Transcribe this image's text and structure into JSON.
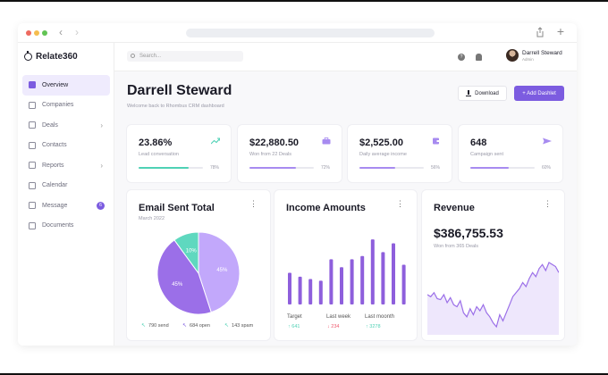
{
  "app": {
    "name": "Relate360"
  },
  "browser": {
    "back_glyph": "‹",
    "forward_glyph": "›",
    "new_tab_glyph": "+"
  },
  "sidebar": {
    "items": [
      {
        "label": "Overview",
        "icon": "grid-icon",
        "active": true
      },
      {
        "label": "Companies",
        "icon": "building-icon"
      },
      {
        "label": "Deals",
        "icon": "briefcase-icon",
        "chevron": true
      },
      {
        "label": "Contacts",
        "icon": "contacts-icon"
      },
      {
        "label": "Reports",
        "icon": "report-icon",
        "chevron": true
      },
      {
        "label": "Calendar",
        "icon": "calendar-icon"
      },
      {
        "label": "Message",
        "icon": "mail-icon",
        "badge": "6"
      },
      {
        "label": "Documents",
        "icon": "document-icon"
      }
    ],
    "chevron_glyph": "›"
  },
  "topbar": {
    "search_placeholder": "Search...",
    "help_glyph": "?",
    "user": {
      "name": "Darrell Steward",
      "role": "Admin"
    }
  },
  "header": {
    "title": "Darrell Steward",
    "subtitle": "Welcome back to Rhombus CRM dashboard",
    "download_label": "Download",
    "add_label": "+ Add Dashlet"
  },
  "stats": [
    {
      "value": "23.86%",
      "label": "Lead conversation",
      "percent": "78%",
      "progress": 0.78,
      "color": "#4fd1b5",
      "icon": "trend-icon"
    },
    {
      "value": "$22,880.50",
      "label": "Won from 22 Deals",
      "percent": "72%",
      "progress": 0.72,
      "color": "#a78bf0",
      "icon": "briefcase-icon"
    },
    {
      "value": "$2,525.00",
      "label": "Daily average income",
      "percent": "56%",
      "progress": 0.56,
      "color": "#a78bf0",
      "icon": "wallet-icon"
    },
    {
      "value": "648",
      "label": "Campaign sent",
      "percent": "60%",
      "progress": 0.6,
      "color": "#a78bf0",
      "icon": "send-icon"
    }
  ],
  "email_card": {
    "title": "Email Sent Total",
    "subtitle": "March 2022",
    "legend": [
      {
        "arrow": "↖",
        "text": "790 send",
        "color": "#4fd1b5"
      },
      {
        "arrow": "↖",
        "text": "684 open",
        "color": "#7c5ce0"
      },
      {
        "arrow": "↖",
        "text": "143 spam",
        "color": "#4fd1b5"
      }
    ]
  },
  "income_card": {
    "title": "Income Amounts",
    "footer": [
      {
        "label": "Target",
        "value": "↑ 641",
        "color": "#4fd1b5"
      },
      {
        "label": "Last week",
        "value": "↓ 234",
        "color": "#ef5a6f"
      },
      {
        "label": "Last moonth",
        "value": "↑ 3278",
        "color": "#4fd1b5"
      }
    ]
  },
  "revenue_card": {
    "title": "Revenue",
    "value": "$386,755.53",
    "subtitle": "Won from 365 Deals"
  },
  "chart_data": [
    {
      "type": "pie",
      "title": "Email Sent Total",
      "slices": [
        {
          "label": "45%",
          "value": 45,
          "color": "#c2a8fb"
        },
        {
          "label": "45%",
          "value": 45,
          "color": "#9b6fe8"
        },
        {
          "label": "10%",
          "value": 10,
          "color": "#5fd8bf"
        }
      ]
    },
    {
      "type": "bar",
      "title": "Income Amounts",
      "values": [
        40,
        35,
        32,
        30,
        57,
        47,
        57,
        61,
        82,
        66,
        77,
        50
      ],
      "ylim": [
        0,
        90
      ],
      "color": "#8e5fdc"
    },
    {
      "type": "area",
      "title": "Revenue",
      "values": [
        40,
        38,
        42,
        36,
        35,
        40,
        32,
        37,
        30,
        28,
        34,
        22,
        18,
        26,
        20,
        28,
        24,
        30,
        22,
        18,
        12,
        8,
        20,
        14,
        22,
        30,
        38,
        42,
        46,
        52,
        48,
        56,
        62,
        58,
        66,
        70,
        64,
        72,
        70,
        68,
        62
      ],
      "ylim": [
        0,
        80
      ],
      "color": "#9b6fe8",
      "fill": "#eee7fc"
    }
  ]
}
